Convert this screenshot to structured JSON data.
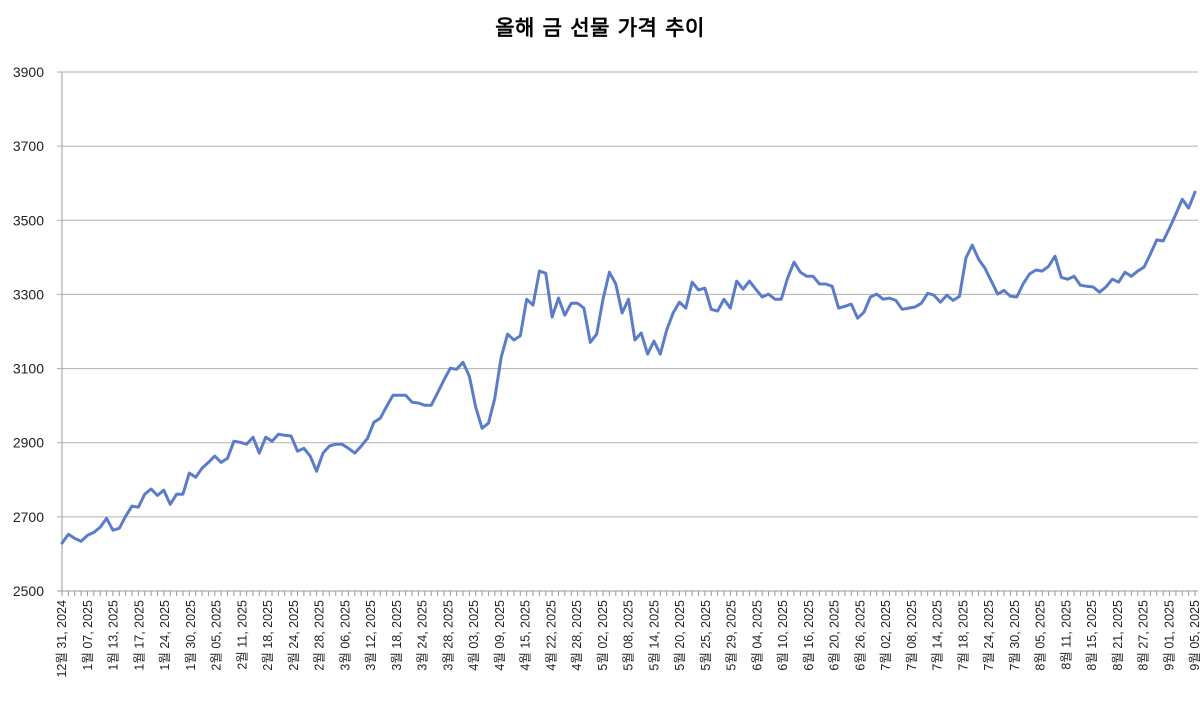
{
  "chart": {
    "title": "올해 금 선물 가격 추이",
    "line_color": "#5B7CC8",
    "grid_color": "#B0B0B0",
    "axis_color": "#999999"
  },
  "chart_data": {
    "type": "line",
    "title": "올해 금 선물 가격 추이",
    "xlabel": "",
    "ylabel": "",
    "ylim": [
      2500,
      3900
    ],
    "yticks": [
      2500,
      2700,
      2900,
      3100,
      3300,
      3500,
      3700,
      3900
    ],
    "grid": true,
    "legend": "none",
    "x_tick_labels": [
      "12월 31, 2024",
      "1월 07, 2025",
      "1월 13, 2025",
      "1월 17, 2025",
      "1월 24, 2025",
      "1월 30, 2025",
      "2월 05, 2025",
      "2월 11, 2025",
      "2월 18, 2025",
      "2월 24, 2025",
      "2월 28, 2025",
      "3월 06, 2025",
      "3월 12, 2025",
      "3월 18, 2025",
      "3월 24, 2025",
      "3월 28, 2025",
      "4월 03, 2025",
      "4월 09, 2025",
      "4월 15, 2025",
      "4월 22, 2025",
      "4월 28, 2025",
      "5월 02, 2025",
      "5월 08, 2025",
      "5월 14, 2025",
      "5월 20, 2025",
      "5월 25, 2025",
      "5월 29, 2025",
      "6월 04, 2025",
      "6월 10, 2025",
      "6월 16, 2025",
      "6월 20, 2025",
      "6월 26, 2025",
      "7월 02, 2025",
      "7월 08, 2025",
      "7월 14, 2025",
      "7월 18, 2025",
      "7월 24, 2025",
      "7월 30, 2025",
      "8월 05, 2025",
      "8월 11, 2025",
      "8월 15, 2025",
      "8월 21, 2025",
      "8월 27, 2025",
      "9월 01, 2025",
      "9월 05, 2025"
    ],
    "series": [
      {
        "name": "금 선물 가격",
        "values": [
          2629,
          2653,
          2642,
          2634,
          2650,
          2658,
          2672,
          2696,
          2664,
          2669,
          2702,
          2729,
          2726,
          2761,
          2775,
          2758,
          2772,
          2734,
          2761,
          2761,
          2818,
          2807,
          2831,
          2847,
          2864,
          2847,
          2858,
          2904,
          2901,
          2896,
          2915,
          2872,
          2915,
          2904,
          2923,
          2920,
          2918,
          2877,
          2885,
          2864,
          2823,
          2872,
          2891,
          2896,
          2896,
          2885,
          2872,
          2891,
          2912,
          2955,
          2966,
          2998,
          3028,
          3028,
          3028,
          3009,
          3007,
          3001,
          3001,
          3034,
          3069,
          3101,
          3098,
          3117,
          3079,
          2996,
          2939,
          2953,
          3020,
          3131,
          3193,
          3177,
          3188,
          3287,
          3271,
          3363,
          3357,
          3239,
          3290,
          3244,
          3276,
          3276,
          3263,
          3171,
          3193,
          3287,
          3360,
          3328,
          3250,
          3287,
          3177,
          3196,
          3139,
          3174,
          3139,
          3204,
          3250,
          3279,
          3263,
          3333,
          3312,
          3317,
          3260,
          3255,
          3287,
          3263,
          3336,
          3314,
          3336,
          3314,
          3293,
          3301,
          3287,
          3287,
          3344,
          3387,
          3360,
          3349,
          3349,
          3328,
          3328,
          3322,
          3263,
          3268,
          3274,
          3236,
          3252,
          3293,
          3301,
          3287,
          3290,
          3284,
          3260,
          3263,
          3266,
          3276,
          3303,
          3298,
          3279,
          3298,
          3284,
          3295,
          3398,
          3433,
          3395,
          3371,
          3336,
          3301,
          3311,
          3295,
          3293,
          3328,
          3355,
          3366,
          3363,
          3376,
          3403,
          3346,
          3341,
          3349,
          3325,
          3322,
          3320,
          3306,
          3320,
          3341,
          3333,
          3360,
          3349,
          3363,
          3374,
          3409,
          3447,
          3444,
          3479,
          3517,
          3557,
          3533,
          3576
        ]
      }
    ]
  }
}
